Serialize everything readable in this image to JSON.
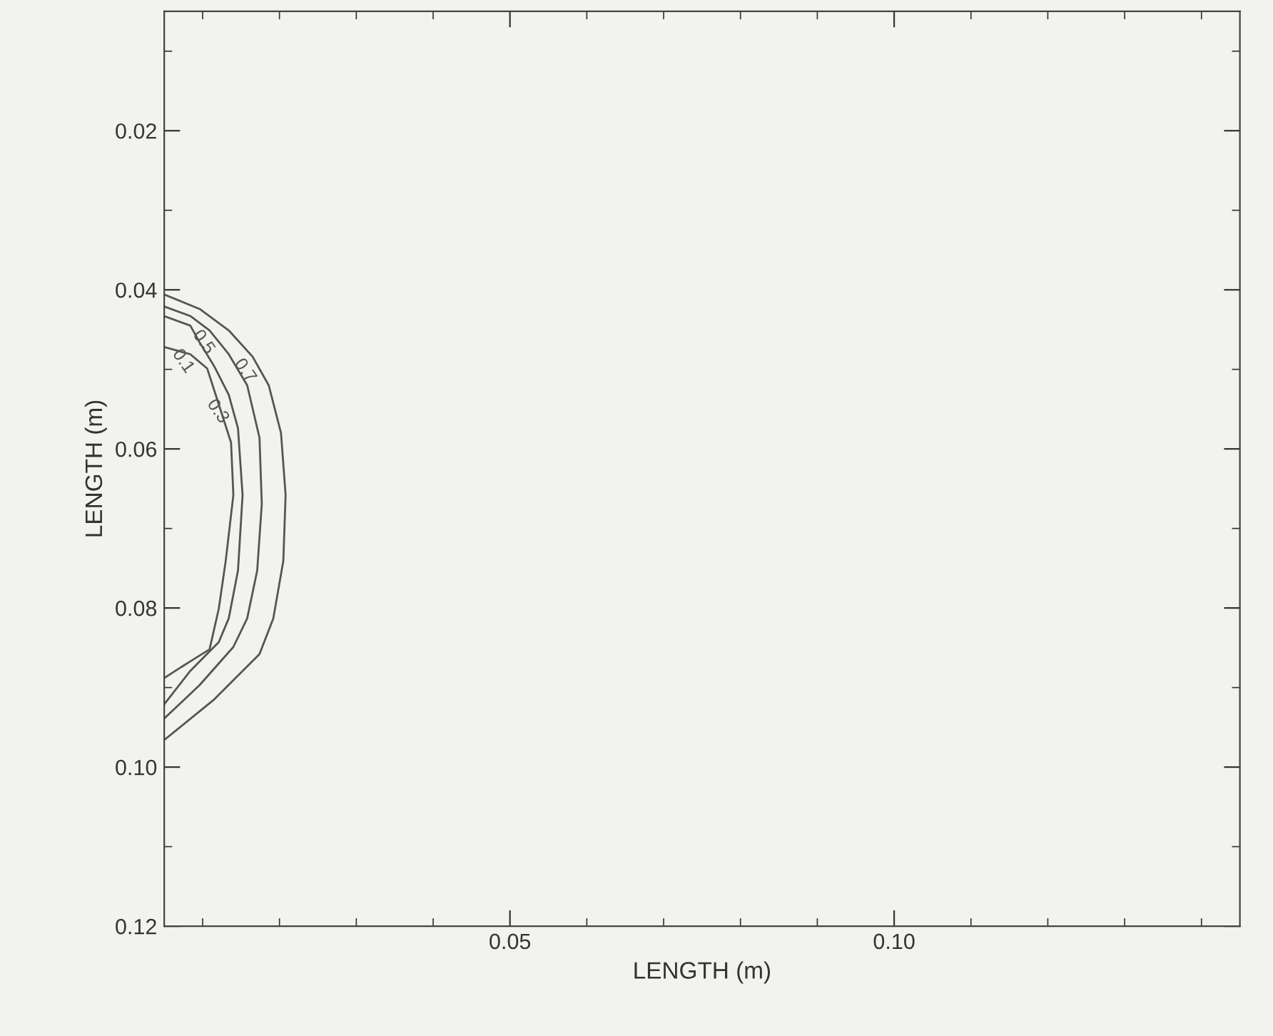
{
  "chart_data": {
    "type": "line",
    "xlabel": "LENGTH (m)",
    "ylabel": "LENGTH (m)",
    "xlim": [
      0.005,
      0.145
    ],
    "ylim": [
      0.12,
      0.005
    ],
    "xticks": [
      {
        "value": 0.01,
        "label": null
      },
      {
        "value": 0.02,
        "label": null
      },
      {
        "value": 0.03,
        "label": null
      },
      {
        "value": 0.04,
        "label": null
      },
      {
        "value": 0.05,
        "label": "0.05"
      },
      {
        "value": 0.06,
        "label": null
      },
      {
        "value": 0.07,
        "label": null
      },
      {
        "value": 0.08,
        "label": null
      },
      {
        "value": 0.09,
        "label": null
      },
      {
        "value": 0.1,
        "label": "0.10"
      },
      {
        "value": 0.11,
        "label": null
      },
      {
        "value": 0.12,
        "label": null
      },
      {
        "value": 0.13,
        "label": null
      },
      {
        "value": 0.14,
        "label": null
      }
    ],
    "yticks": [
      {
        "value": 0.01,
        "label": null
      },
      {
        "value": 0.02,
        "label": "0.02"
      },
      {
        "value": 0.03,
        "label": null
      },
      {
        "value": 0.04,
        "label": "0.04"
      },
      {
        "value": 0.05,
        "label": null
      },
      {
        "value": 0.06,
        "label": "0.06"
      },
      {
        "value": 0.07,
        "label": null
      },
      {
        "value": 0.08,
        "label": "0.08"
      },
      {
        "value": 0.09,
        "label": null
      },
      {
        "value": 0.1,
        "label": "0.10"
      },
      {
        "value": 0.11,
        "label": null
      },
      {
        "value": 0.12,
        "label": "0.12"
      }
    ],
    "grid": false,
    "legend": false,
    "marker": "none",
    "line_style": "solid",
    "series": [
      {
        "name": "0.7",
        "color": "#555555",
        "x": [
          0.005,
          0.0096,
          0.0134,
          0.0165,
          0.0186,
          0.0202,
          0.0208,
          0.0205,
          0.0192,
          0.0174,
          0.0115,
          0.005
        ],
        "values": [
          0.0406,
          0.0424,
          0.0451,
          0.0484,
          0.052,
          0.058,
          0.0658,
          0.0741,
          0.0813,
          0.0858,
          0.0915,
          0.0966
        ]
      },
      {
        "name": "0.5",
        "color": "#555555",
        "x": [
          0.005,
          0.0084,
          0.0109,
          0.0134,
          0.0158,
          0.0174,
          0.0177,
          0.0171,
          0.0158,
          0.014,
          0.0096,
          0.005
        ],
        "values": [
          0.0421,
          0.0433,
          0.0451,
          0.0481,
          0.052,
          0.0586,
          0.0669,
          0.0753,
          0.0813,
          0.0849,
          0.0897,
          0.0939
        ]
      },
      {
        "name": "0.3",
        "color": "#555555",
        "x": [
          0.005,
          0.0084,
          0.0096,
          0.0115,
          0.0134,
          0.0146,
          0.0152,
          0.0146,
          0.0134,
          0.0121,
          0.0084,
          0.005
        ],
        "values": [
          0.0433,
          0.0445,
          0.0466,
          0.0496,
          0.0532,
          0.0574,
          0.0658,
          0.0753,
          0.0813,
          0.0843,
          0.0879,
          0.0921
        ]
      },
      {
        "name": "0.1",
        "color": "#555555",
        "x": [
          0.005,
          0.0084,
          0.0106,
          0.0121,
          0.0137,
          0.014,
          0.013,
          0.0121,
          0.0109,
          0.0084,
          0.005
        ],
        "values": [
          0.0472,
          0.0481,
          0.0499,
          0.0544,
          0.0592,
          0.0658,
          0.0741,
          0.0801,
          0.0852,
          0.0867,
          0.0888
        ]
      }
    ]
  }
}
